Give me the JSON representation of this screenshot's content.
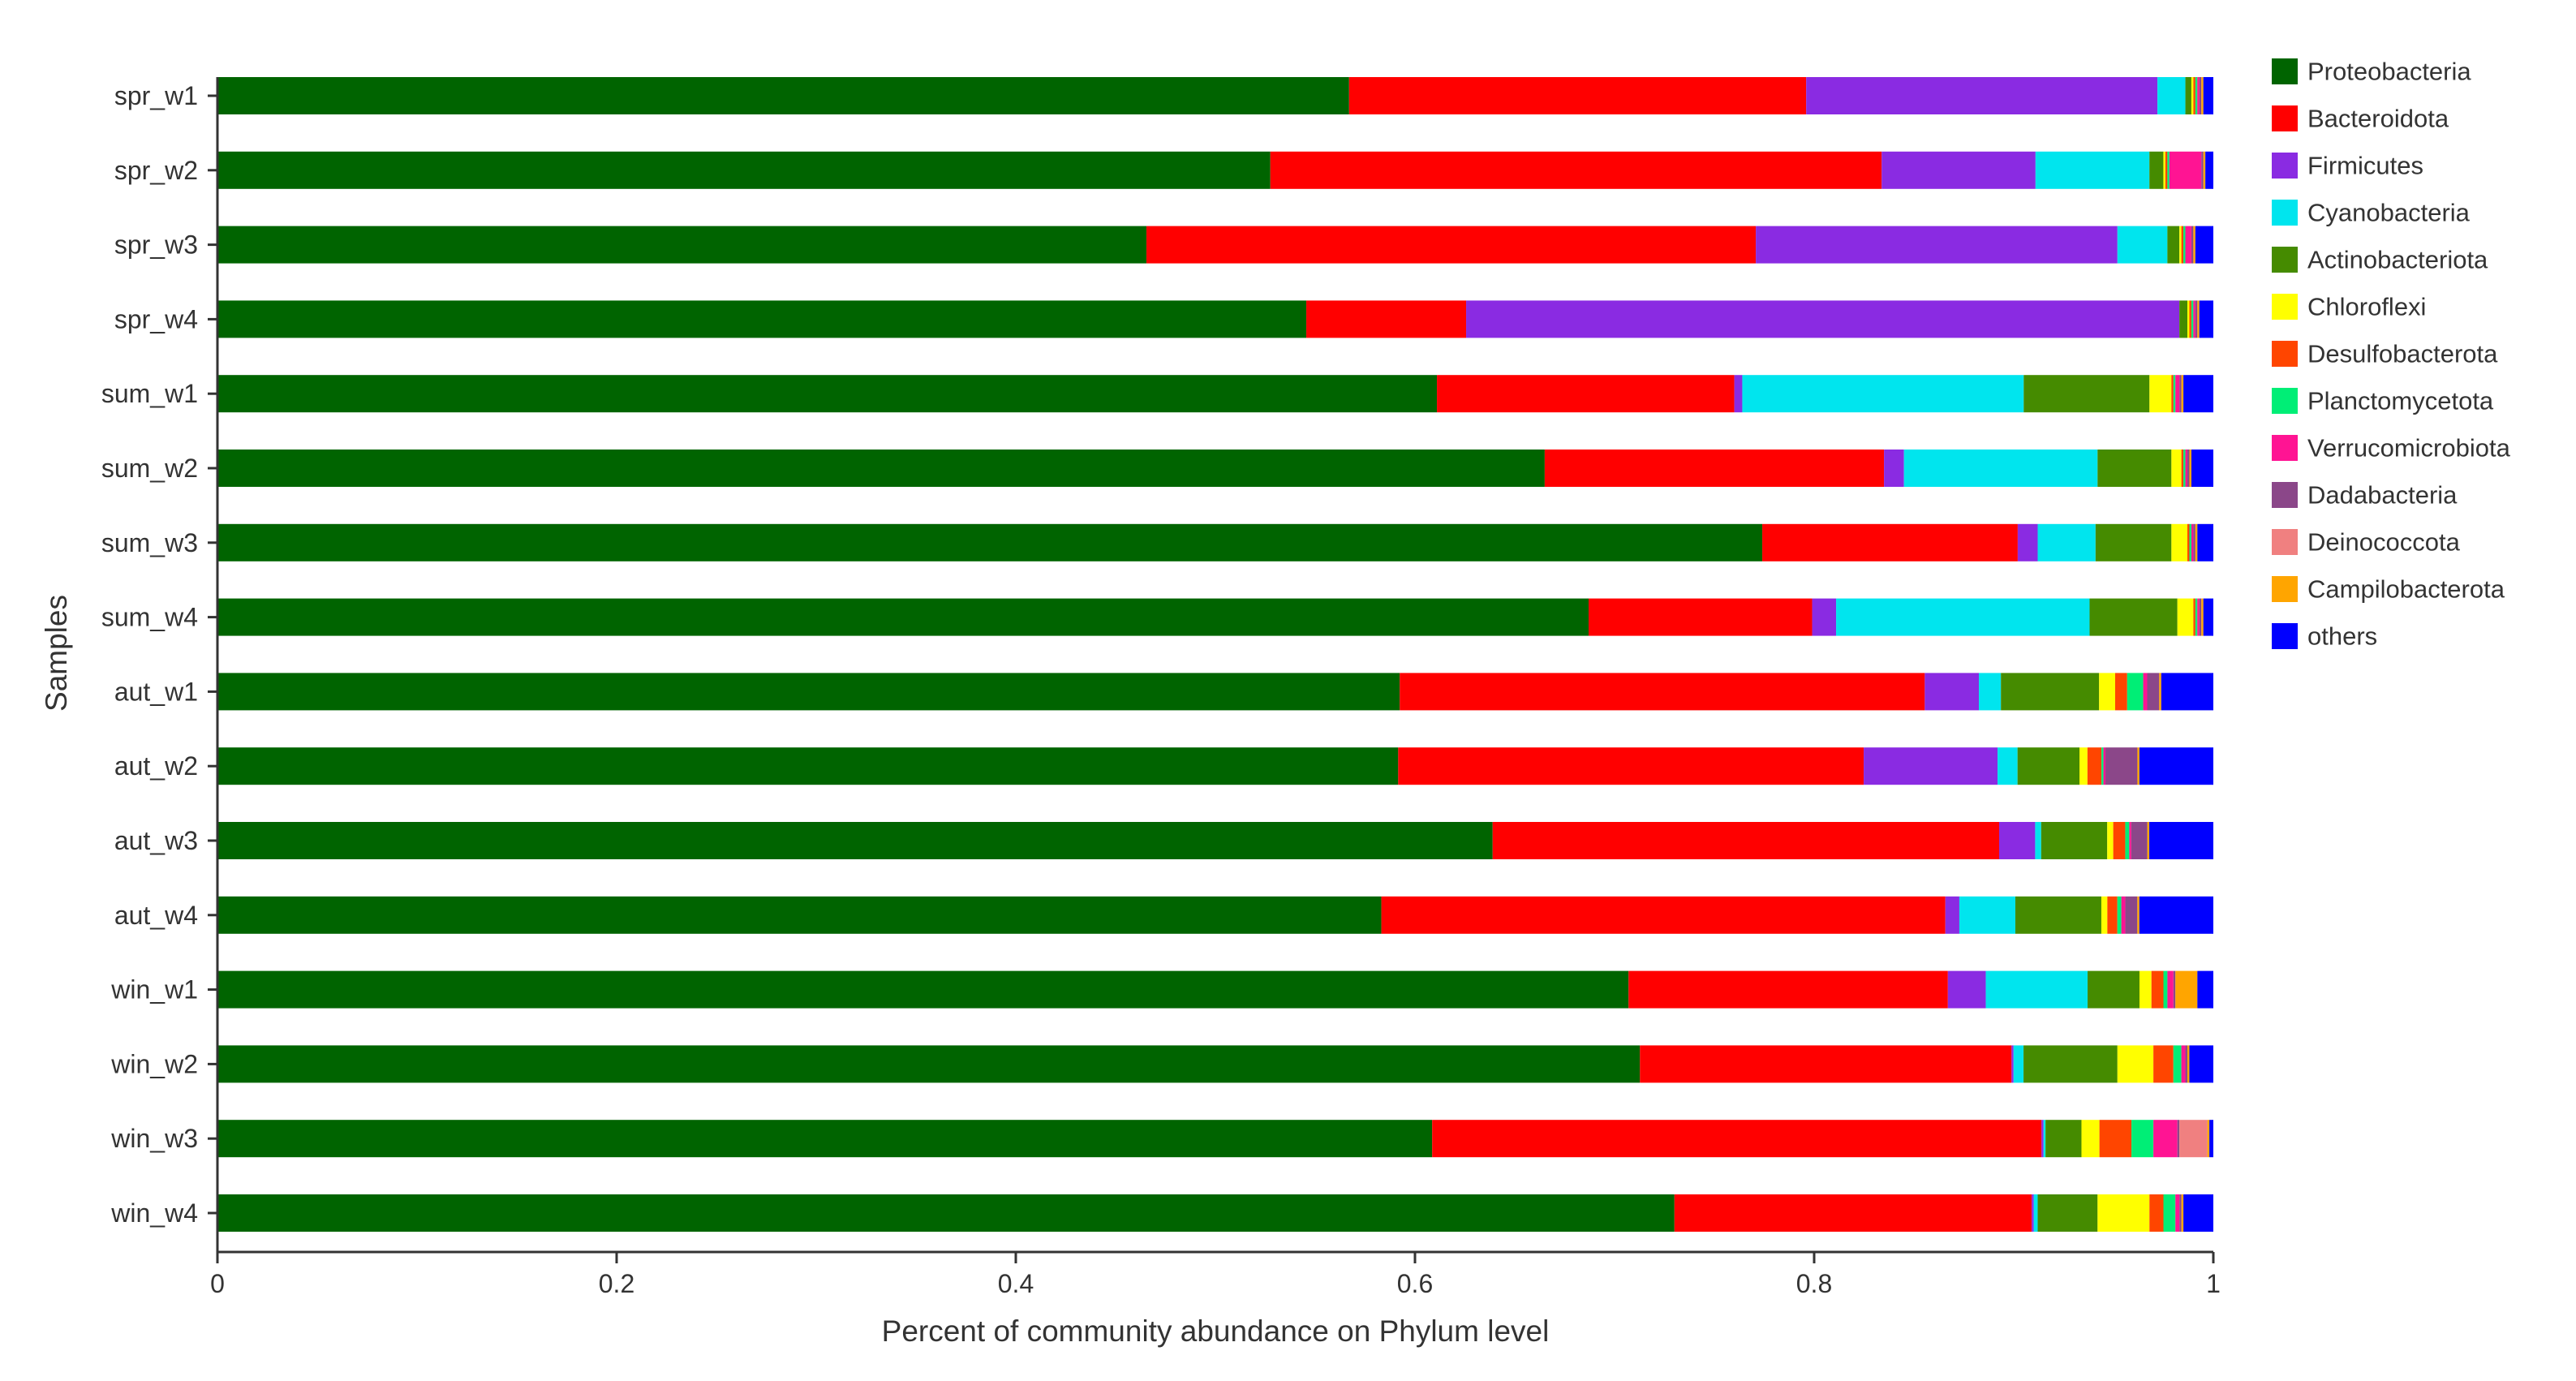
{
  "chart_data": {
    "type": "bar",
    "orientation": "horizontal",
    "stacked": true,
    "xlabel": "Percent of community abundance on Phylum level",
    "ylabel": "Samples",
    "xlim": [
      0,
      1
    ],
    "xticks": [
      0,
      0.2,
      0.4,
      0.6,
      0.8,
      1
    ],
    "xtick_labels": [
      "0",
      "0.2",
      "0.4",
      "0.6",
      "0.8",
      "1"
    ],
    "legend_position": "right",
    "grid": false,
    "categories": [
      "spr_w1",
      "spr_w2",
      "spr_w3",
      "spr_w4",
      "sum_w1",
      "sum_w2",
      "sum_w3",
      "sum_w4",
      "aut_w1",
      "aut_w2",
      "aut_w3",
      "aut_w4",
      "win_w1",
      "win_w2",
      "win_w3",
      "win_w4"
    ],
    "series": [
      {
        "name": "Proteobacteria",
        "color": "#006400",
        "values": [
          0.567,
          0.527,
          0.465,
          0.545,
          0.611,
          0.665,
          0.774,
          0.687,
          0.59,
          0.591,
          0.637,
          0.582,
          0.707,
          0.712,
          0.608,
          0.73
        ]
      },
      {
        "name": "Bacteroidota",
        "color": "#ff0000",
        "values": [
          0.229,
          0.306,
          0.305,
          0.08,
          0.149,
          0.17,
          0.128,
          0.112,
          0.262,
          0.233,
          0.253,
          0.282,
          0.16,
          0.186,
          0.305,
          0.179
        ]
      },
      {
        "name": "Firmicutes",
        "color": "#8a2be2",
        "values": [
          0.176,
          0.077,
          0.181,
          0.357,
          0.004,
          0.01,
          0.01,
          0.012,
          0.027,
          0.067,
          0.018,
          0.007,
          0.019,
          0.001,
          0.001,
          0.001
        ]
      },
      {
        "name": "Cyanobacteria",
        "color": "#00e5ee",
        "values": [
          0.014,
          0.057,
          0.025,
          0.0,
          0.141,
          0.097,
          0.029,
          0.127,
          0.011,
          0.01,
          0.003,
          0.028,
          0.051,
          0.005,
          0.001,
          0.002
        ]
      },
      {
        "name": "Actinobacteriota",
        "color": "#458b00",
        "values": [
          0.003,
          0.007,
          0.006,
          0.004,
          0.063,
          0.037,
          0.038,
          0.044,
          0.049,
          0.031,
          0.033,
          0.043,
          0.026,
          0.047,
          0.018,
          0.03
        ]
      },
      {
        "name": "Chloroflexi",
        "color": "#ffff00",
        "values": [
          0.001,
          0.001,
          0.001,
          0.001,
          0.011,
          0.005,
          0.008,
          0.008,
          0.008,
          0.004,
          0.003,
          0.003,
          0.006,
          0.018,
          0.009,
          0.026
        ]
      },
      {
        "name": "Desulfobacterota",
        "color": "#ff4500",
        "values": [
          0.001,
          0.001,
          0.001,
          0.001,
          0.001,
          0.001,
          0.001,
          0.001,
          0.006,
          0.007,
          0.006,
          0.005,
          0.006,
          0.01,
          0.016,
          0.007
        ]
      },
      {
        "name": "Planctomycetota",
        "color": "#00ee76",
        "values": [
          0.001,
          0.001,
          0.001,
          0.001,
          0.001,
          0.001,
          0.001,
          0.001,
          0.008,
          0.001,
          0.002,
          0.002,
          0.002,
          0.004,
          0.011,
          0.006
        ]
      },
      {
        "name": "Verrucomicrobiota",
        "color": "#ff1493",
        "values": [
          0.001,
          0.016,
          0.003,
          0.001,
          0.002,
          0.001,
          0.001,
          0.001,
          0.002,
          0.001,
          0.001,
          0.002,
          0.003,
          0.002,
          0.012,
          0.002
        ]
      },
      {
        "name": "Dadabacteria",
        "color": "#8b4789",
        "values": [
          0.001,
          0.001,
          0.001,
          0.001,
          0.001,
          0.001,
          0.001,
          0.001,
          0.006,
          0.016,
          0.008,
          0.006,
          0.001,
          0.001,
          0.001,
          0.001
        ]
      },
      {
        "name": "Deinococcota",
        "color": "#f08080",
        "values": [
          0.0,
          0.0,
          0.0,
          0.0,
          0.0,
          0.0,
          0.0,
          0.0,
          0.0,
          0.0,
          0.0,
          0.0,
          0.0,
          0.0,
          0.014,
          0.0
        ]
      },
      {
        "name": "Campilobacterota",
        "color": "#ffa500",
        "values": [
          0.001,
          0.001,
          0.001,
          0.001,
          0.001,
          0.001,
          0.001,
          0.001,
          0.001,
          0.001,
          0.001,
          0.001,
          0.011,
          0.001,
          0.001,
          0.001
        ]
      },
      {
        "name": "others",
        "color": "#0000ff",
        "values": [
          0.005,
          0.004,
          0.009,
          0.007,
          0.015,
          0.011,
          0.008,
          0.005,
          0.026,
          0.037,
          0.032,
          0.037,
          0.008,
          0.012,
          0.002,
          0.015
        ]
      }
    ]
  }
}
